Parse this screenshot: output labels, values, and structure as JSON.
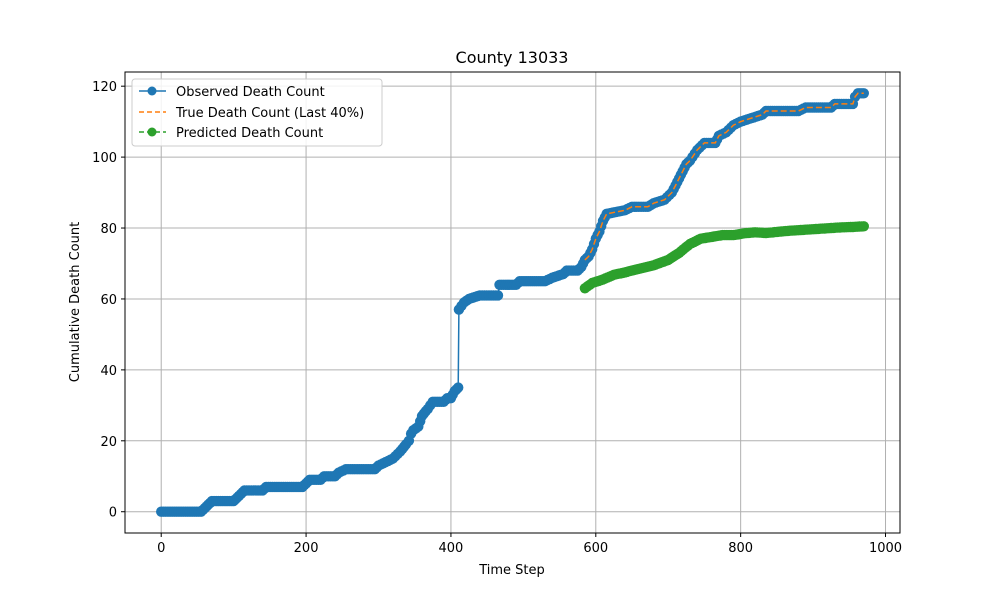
{
  "chart_data": {
    "type": "line",
    "title": "County 13033",
    "xlabel": "Time Step",
    "ylabel": "Cumulative Death Count",
    "xlim": [
      -50,
      1020
    ],
    "ylim": [
      -6,
      124
    ],
    "xticks": [
      0,
      200,
      400,
      600,
      800,
      1000
    ],
    "yticks": [
      0,
      20,
      40,
      60,
      80,
      100,
      120
    ],
    "grid": true,
    "legend_position": "top-left",
    "colors": {
      "observed": "#1f77b4",
      "true": "#ff7f0e",
      "predicted": "#2ca02c"
    },
    "series": [
      {
        "name": "Observed Death Count",
        "style": "solid-with-markers",
        "points": [
          [
            0,
            0
          ],
          [
            55,
            0
          ],
          [
            60,
            1
          ],
          [
            65,
            2
          ],
          [
            70,
            3
          ],
          [
            100,
            3
          ],
          [
            105,
            4
          ],
          [
            110,
            5
          ],
          [
            115,
            6
          ],
          [
            140,
            6
          ],
          [
            145,
            7
          ],
          [
            195,
            7
          ],
          [
            200,
            8
          ],
          [
            205,
            9
          ],
          [
            220,
            9
          ],
          [
            225,
            10
          ],
          [
            240,
            10
          ],
          [
            245,
            11
          ],
          [
            255,
            12
          ],
          [
            295,
            12
          ],
          [
            300,
            13
          ],
          [
            310,
            14
          ],
          [
            320,
            15
          ],
          [
            330,
            17
          ],
          [
            338,
            19
          ],
          [
            342,
            20
          ],
          [
            345,
            22
          ],
          [
            348,
            23
          ],
          [
            355,
            24
          ],
          [
            360,
            27
          ],
          [
            368,
            29
          ],
          [
            375,
            31
          ],
          [
            390,
            31
          ],
          [
            395,
            32
          ],
          [
            400,
            32
          ],
          [
            405,
            34
          ],
          [
            410,
            35
          ],
          [
            411,
            57
          ],
          [
            418,
            59
          ],
          [
            425,
            60
          ],
          [
            440,
            61
          ],
          [
            465,
            61
          ],
          [
            467,
            64
          ],
          [
            490,
            64
          ],
          [
            495,
            65
          ],
          [
            530,
            65
          ],
          [
            540,
            66
          ],
          [
            555,
            67
          ],
          [
            560,
            68
          ],
          [
            575,
            68
          ],
          [
            580,
            69
          ],
          [
            585,
            71
          ],
          [
            590,
            72
          ],
          [
            595,
            74
          ],
          [
            600,
            77
          ],
          [
            605,
            79
          ],
          [
            610,
            82
          ],
          [
            615,
            84
          ],
          [
            640,
            85
          ],
          [
            650,
            86
          ],
          [
            672,
            86
          ],
          [
            680,
            87
          ],
          [
            695,
            88
          ],
          [
            705,
            90
          ],
          [
            710,
            92
          ],
          [
            715,
            94
          ],
          [
            720,
            96
          ],
          [
            725,
            98
          ],
          [
            730,
            99
          ],
          [
            740,
            102
          ],
          [
            750,
            104
          ],
          [
            765,
            104
          ],
          [
            770,
            106
          ],
          [
            780,
            107
          ],
          [
            790,
            109
          ],
          [
            800,
            110
          ],
          [
            815,
            111
          ],
          [
            830,
            112
          ],
          [
            835,
            113
          ],
          [
            880,
            113
          ],
          [
            890,
            114
          ],
          [
            925,
            114
          ],
          [
            930,
            115
          ],
          [
            955,
            115
          ],
          [
            958,
            117
          ],
          [
            962,
            118
          ],
          [
            970,
            118
          ]
        ]
      },
      {
        "name": "True Death Count (Last 40%)",
        "style": "dashed",
        "points": [
          [
            585,
            71
          ],
          [
            590,
            72
          ],
          [
            595,
            74
          ],
          [
            600,
            77
          ],
          [
            605,
            79
          ],
          [
            610,
            82
          ],
          [
            615,
            84
          ],
          [
            640,
            85
          ],
          [
            650,
            86
          ],
          [
            672,
            86
          ],
          [
            680,
            87
          ],
          [
            695,
            88
          ],
          [
            705,
            90
          ],
          [
            710,
            92
          ],
          [
            715,
            94
          ],
          [
            720,
            96
          ],
          [
            725,
            98
          ],
          [
            730,
            99
          ],
          [
            740,
            102
          ],
          [
            750,
            104
          ],
          [
            765,
            104
          ],
          [
            770,
            106
          ],
          [
            780,
            107
          ],
          [
            790,
            109
          ],
          [
            800,
            110
          ],
          [
            815,
            111
          ],
          [
            830,
            112
          ],
          [
            835,
            113
          ],
          [
            880,
            113
          ],
          [
            890,
            114
          ],
          [
            925,
            114
          ],
          [
            930,
            115
          ],
          [
            955,
            115
          ],
          [
            958,
            117
          ],
          [
            962,
            118
          ],
          [
            970,
            118
          ]
        ]
      },
      {
        "name": "Predicted Death Count",
        "style": "dashed-with-markers",
        "points": [
          [
            585,
            63
          ],
          [
            595,
            64.5
          ],
          [
            610,
            65.5
          ],
          [
            625,
            66.8
          ],
          [
            640,
            67.5
          ],
          [
            660,
            68.5
          ],
          [
            680,
            69.5
          ],
          [
            700,
            71
          ],
          [
            715,
            73
          ],
          [
            730,
            75.5
          ],
          [
            745,
            77
          ],
          [
            760,
            77.5
          ],
          [
            775,
            78
          ],
          [
            790,
            78
          ],
          [
            805,
            78.5
          ],
          [
            820,
            78.8
          ],
          [
            835,
            78.6
          ],
          [
            850,
            78.9
          ],
          [
            865,
            79.2
          ],
          [
            880,
            79.4
          ],
          [
            895,
            79.6
          ],
          [
            910,
            79.8
          ],
          [
            925,
            80
          ],
          [
            940,
            80.2
          ],
          [
            955,
            80.3
          ],
          [
            970,
            80.5
          ]
        ]
      }
    ]
  }
}
